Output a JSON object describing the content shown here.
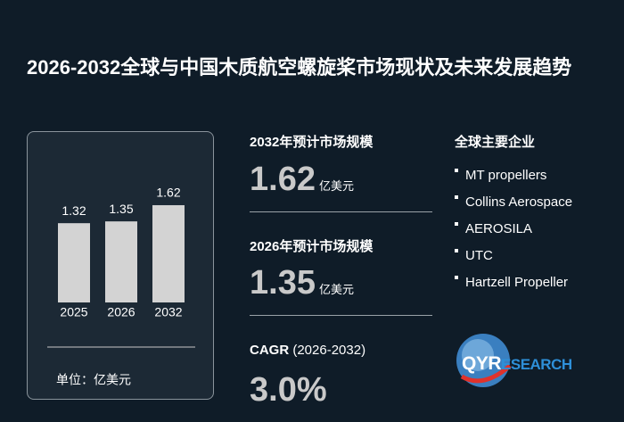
{
  "header": {
    "title": "2026-2032全球与中国木质航空螺旋桨市场现状及未来发展趋势"
  },
  "chart_data": {
    "type": "bar",
    "categories": [
      "2025",
      "2026",
      "2032"
    ],
    "values": [
      1.32,
      1.35,
      1.62
    ],
    "color": "#d3d3d3",
    "unit_label": "单位：亿美元"
  },
  "stats": [
    {
      "heading": "2032年预计市场规模",
      "value": "1.62",
      "unit": "亿美元"
    },
    {
      "heading": "2026年预计市场规模",
      "value": "1.35",
      "unit": "亿美元"
    }
  ],
  "cagr": {
    "label": "CAGR",
    "period": "(2026-2032)",
    "value": "3.0%"
  },
  "companies": {
    "heading": "全球主要企业",
    "items": [
      "MT propellers",
      "Collins Aerospace",
      "AEROSILA",
      "UTC",
      "Hartzell Propeller"
    ]
  },
  "logo": {
    "mark": "QYR",
    "rest": "ESEARCH"
  }
}
